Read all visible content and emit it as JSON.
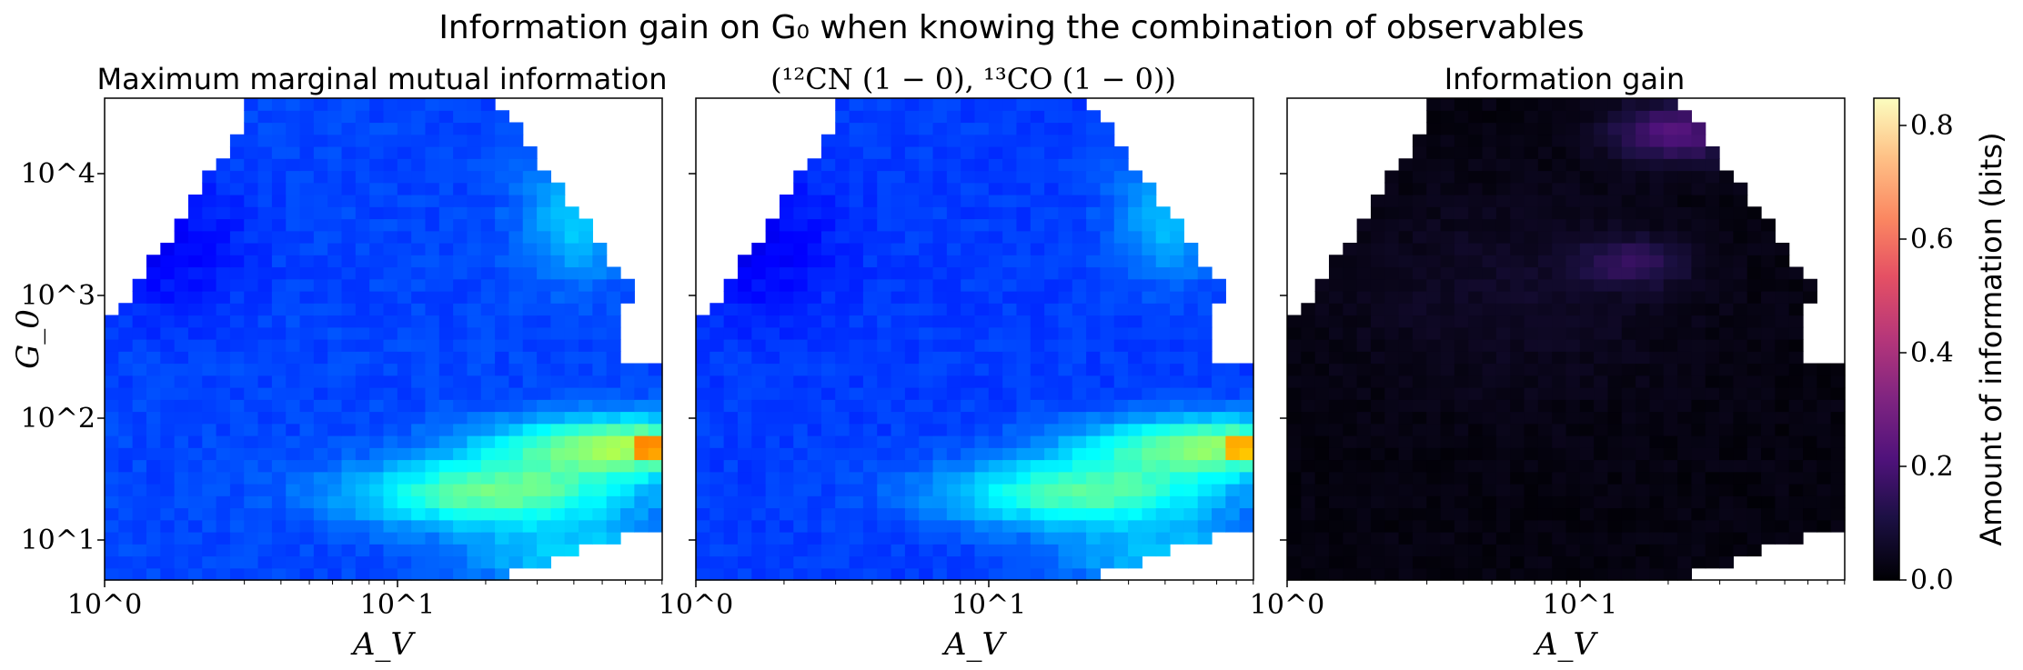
{
  "title": "Information gain on G₀ when knowing the combination of observables",
  "chart_data": [
    {
      "type": "heatmap",
      "title": "Maximum marginal mutual information",
      "xlabel": "A_V",
      "ylabel": "G_0",
      "x_scale": "log",
      "y_scale": "log",
      "xlim": [
        1,
        80
      ],
      "ylim": [
        5,
        35000
      ],
      "colormap": "jet",
      "color_range": [
        0,
        0.85
      ],
      "x_tick_labels": [
        "10^0",
        "10^1"
      ],
      "y_tick_labels": [
        "10^1",
        "10^2",
        "10^3",
        "10^4"
      ],
      "summary": {
        "typical_value": 0.15,
        "high_region": {
          "A_V": [
            20,
            80
          ],
          "G_0": [
            30,
            100
          ],
          "value": 0.5
        },
        "max_value": 0.62,
        "max_at": {
          "A_V": 78,
          "G_0": 50
        }
      }
    },
    {
      "type": "heatmap",
      "title": "(¹²CN (1 − 0), ¹³CO (1 − 0))",
      "xlabel": "A_V",
      "x_scale": "log",
      "y_scale": "log",
      "xlim": [
        1,
        80
      ],
      "ylim": [
        5,
        35000
      ],
      "colormap": "jet",
      "color_range": [
        0,
        0.85
      ],
      "x_tick_labels": [
        "10^0",
        "10^1"
      ],
      "summary": {
        "typical_value": 0.15,
        "high_region": {
          "A_V": [
            20,
            80
          ],
          "G_0": [
            30,
            100
          ],
          "value": 0.5
        },
        "max_value": 0.55
      }
    },
    {
      "type": "heatmap",
      "title": "Information gain",
      "xlabel": "A_V",
      "x_scale": "log",
      "y_scale": "log",
      "xlim": [
        1,
        80
      ],
      "ylim": [
        5,
        35000
      ],
      "colormap": "magma",
      "color_range": [
        0,
        0.85
      ],
      "x_tick_labels": [
        "10^0",
        "10^1"
      ],
      "summary": {
        "typical_value": 0.02,
        "high_region": {
          "A_V": [
            20,
            50
          ],
          "G_0": [
            8000,
            20000
          ],
          "value": 0.25
        },
        "secondary_region": {
          "A_V": [
            12,
            30
          ],
          "G_0": [
            1000,
            3000
          ],
          "value": 0.15
        }
      }
    }
  ],
  "colorbar": {
    "label": "Amount of information (bits)",
    "ticks": [
      "0.0",
      "0.2",
      "0.4",
      "0.6",
      "0.8"
    ],
    "range": [
      0,
      0.85
    ]
  },
  "colors": {
    "background": "#ffffff",
    "outside_domain": "#ffffff"
  }
}
